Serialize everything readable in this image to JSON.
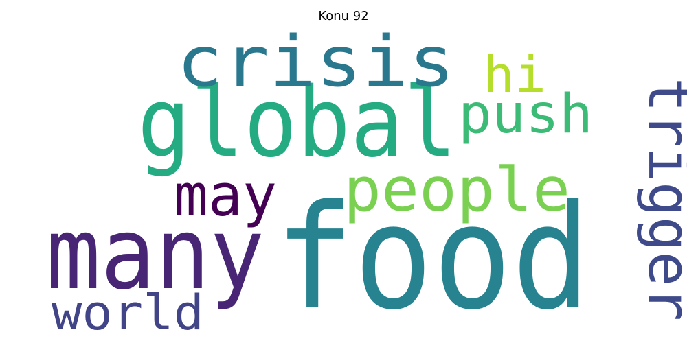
{
  "title": "Konu 92",
  "words": [
    {
      "text": "food",
      "color": "#26838f"
    },
    {
      "text": "global",
      "color": "#25ab82"
    },
    {
      "text": "many",
      "color": "#482575"
    },
    {
      "text": "crisis",
      "color": "#2a788e"
    },
    {
      "text": "people",
      "color": "#7ad151"
    },
    {
      "text": "trigger",
      "color": "#3e4a89"
    },
    {
      "text": "push",
      "color": "#3bbb75"
    },
    {
      "text": "may",
      "color": "#440154"
    },
    {
      "text": "world",
      "color": "#414487"
    },
    {
      "text": "hi",
      "color": "#b5de2b"
    }
  ]
}
